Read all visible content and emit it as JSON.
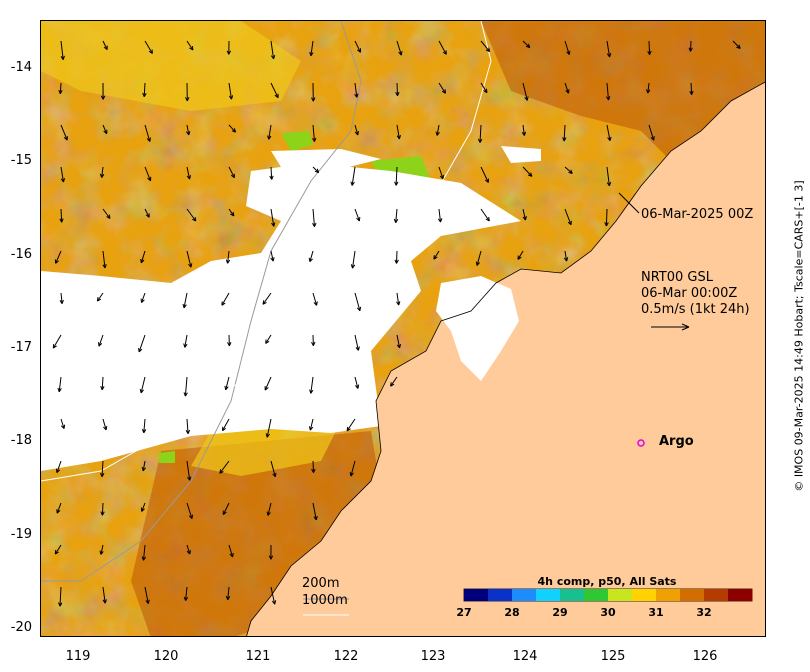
{
  "axes": {
    "y_ticks": [
      "-14",
      "-15",
      "-16",
      "-17",
      "-18",
      "-19",
      "-20"
    ],
    "x_ticks": [
      "119",
      "120",
      "121",
      "122",
      "123",
      "124",
      "125",
      "126"
    ]
  },
  "colors": {
    "land": "#ffcb9a",
    "sst_warm": "#e8a10f",
    "sst_hot": "#c05c08",
    "sst_cool": "#f0c81a",
    "sst_cold": "#8cd31a",
    "cloud": "#ffffff",
    "argo_marker": "#e000e0",
    "isobath": "#9a9a9a"
  },
  "annotations": {
    "timestamp_label": "06-Mar-2025 00Z",
    "current_source": "NRT00 GSL",
    "current_time": "06-Mar 00:00Z",
    "current_scale": "0.5m/s (1kt 24h)",
    "argo_label": "Argo"
  },
  "bathymetry_legend": {
    "contour_200": "200m",
    "contour_1000": "1000m"
  },
  "colorbar": {
    "title": "4h comp, p50, All Sats",
    "ticks": [
      "27",
      "28",
      "29",
      "30",
      "31",
      "32"
    ],
    "range": [
      27,
      33
    ],
    "stops": [
      "#00007a",
      "#0a32c8",
      "#1e8cff",
      "#10d2ff",
      "#18c090",
      "#30c832",
      "#c8e61e",
      "#ffd200",
      "#f0a000",
      "#d26e00",
      "#b43c00",
      "#8c0000"
    ]
  },
  "credit": "© IMOS 09-Mar-2025 14:49 Hobart; Tscale=CARS+[-1 3]"
}
